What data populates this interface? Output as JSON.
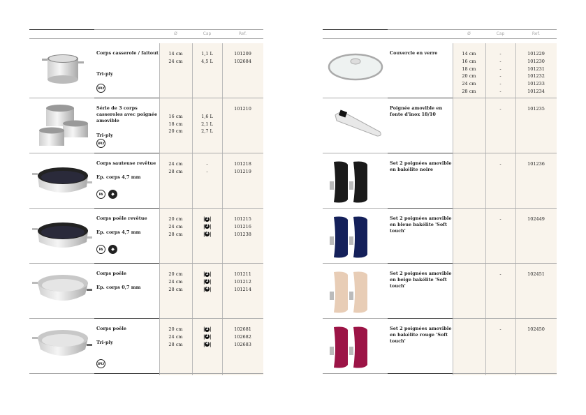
{
  "headers": {
    "diameter": "Ø",
    "capacity": "Cap",
    "reference": "Ref."
  },
  "colors": {
    "cell_background": "#f9f4ec"
  },
  "left": {
    "rows": [
      {
        "image": "stockpot",
        "name": "Corps casserole / faitout",
        "subtitle": "Tri-ply",
        "badges": [
          "3PLY"
        ],
        "sizes": [
          "14 cm",
          "24 cm"
        ],
        "caps": [
          "1,1 L",
          "4,5 L"
        ],
        "refs": [
          "101209",
          "102684"
        ]
      },
      {
        "image": "saucepan-set",
        "name": "Série de 3 corps casseroles avec poignée amovible",
        "subtitle": "Tri-ply",
        "badges": [
          "3PLY"
        ],
        "sizes": [
          "",
          "16 cm",
          "18 cm",
          "20 cm"
        ],
        "caps": [
          "",
          "1,6 L",
          "2,1 L",
          "2,7 L"
        ],
        "refs": [
          "101210"
        ]
      },
      {
        "image": "coated-saute",
        "name": "Corps sauteuse revêtue",
        "subtitle": "Ep. corps 4,7 mm",
        "badges": [
          "PA",
          "icon"
        ],
        "sizes": [
          "24 cm",
          "28 cm"
        ],
        "caps": [
          "-",
          "-"
        ],
        "refs": [
          "101218",
          "101219"
        ]
      },
      {
        "image": "coated-frypan",
        "name": "Corps poêle revêtue",
        "subtitle": "Ep. corps 4,7 mm",
        "badges": [
          "PA",
          "icon"
        ],
        "sizes": [
          "20 cm",
          "24 cm",
          "28 cm"
        ],
        "caps_icon": "burner-icon",
        "caps": [
          "2",
          "3",
          "4"
        ],
        "refs": [
          "101215",
          "101216",
          "101238"
        ]
      },
      {
        "image": "steel-frypan",
        "name": "Corps poêle",
        "subtitle": "Ep. corps 0,7 mm",
        "badges": [],
        "sizes": [
          "20 cm",
          "24 cm",
          "28 cm"
        ],
        "caps_icon": "burner-icon",
        "caps": [
          "2",
          "3",
          "4"
        ],
        "refs": [
          "101211",
          "101212",
          "101214"
        ]
      },
      {
        "image": "steel-frypan",
        "name": "Corps poêle",
        "subtitle": "Tri-ply",
        "badges": [
          "3PLY"
        ],
        "sizes": [
          "20 cm",
          "24 cm",
          "28 cm"
        ],
        "caps_icon": "burner-icon",
        "caps": [
          "2",
          "3",
          "4"
        ],
        "refs": [
          "102681",
          "102682",
          "102683"
        ]
      }
    ]
  },
  "right": {
    "rows": [
      {
        "image": "glass-lid",
        "name": "Couvercle en verre",
        "sizes": [
          "14 cm",
          "16 cm",
          "18 cm",
          "20 cm",
          "24 cm",
          "28 cm"
        ],
        "caps": [
          "-",
          "-",
          "-",
          "-",
          "-",
          "-"
        ],
        "refs": [
          "101229",
          "101230",
          "101231",
          "101232",
          "101233",
          "101234"
        ]
      },
      {
        "image": "steel-handle",
        "name": "Poignée amovible en fonte d'inox 18/10",
        "sizes": [],
        "caps": [
          "-"
        ],
        "refs": [
          "101235"
        ]
      },
      {
        "image": "handles",
        "color": "#1a1a1a",
        "name": "Set 2 poignées amovible en bakélite noire",
        "sizes": [],
        "caps": [
          "-"
        ],
        "refs": [
          "101236"
        ]
      },
      {
        "image": "handles",
        "color": "#14205a",
        "name": "Set 2 poignées amovible en bleue bakélite 'Soft touch'",
        "sizes": [],
        "caps": [
          "-"
        ],
        "refs": [
          "102449"
        ]
      },
      {
        "image": "handles",
        "color": "#e8cdb6",
        "name": "Set 2 poignées amovible en beige bakélite 'Soft touch'",
        "sizes": [],
        "caps": [
          "-"
        ],
        "refs": [
          "102451"
        ]
      },
      {
        "image": "handles",
        "color": "#9c1446",
        "name": "Set 2 poignées amovible en bakélite rouge 'Soft touch'",
        "sizes": [],
        "caps": [
          "-"
        ],
        "refs": [
          "102450"
        ]
      }
    ]
  }
}
